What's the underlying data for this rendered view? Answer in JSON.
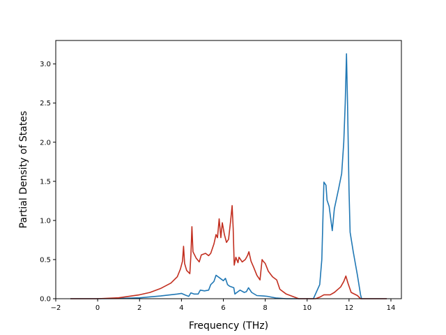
{
  "chart_data": {
    "type": "line",
    "title": "",
    "xlabel": "Frequency (THz)",
    "ylabel": "Partial Density of States",
    "xlim": [
      -2.0,
      14.5
    ],
    "ylim": [
      0.0,
      3.3
    ],
    "xticks": [
      -2,
      0,
      2,
      4,
      6,
      8,
      10,
      12,
      14
    ],
    "xtick_labels": [
      "−2",
      "0",
      "2",
      "4",
      "6",
      "8",
      "10",
      "12",
      "14"
    ],
    "yticks": [
      0.0,
      0.5,
      1.0,
      1.5,
      2.0,
      2.5,
      3.0
    ],
    "ytick_labels": [
      "0.0",
      "0.5",
      "1.0",
      "1.5",
      "2.0",
      "2.5",
      "3.0"
    ],
    "grid": false,
    "legend": "none",
    "series": [
      {
        "color": "#1f77b4",
        "points": [
          [
            -1.3,
            0.0
          ],
          [
            0.0,
            0.0
          ],
          [
            1.0,
            0.003
          ],
          [
            2.0,
            0.012
          ],
          [
            3.0,
            0.035
          ],
          [
            3.8,
            0.06
          ],
          [
            4.0,
            0.068
          ],
          [
            4.2,
            0.045
          ],
          [
            4.35,
            0.03
          ],
          [
            4.45,
            0.075
          ],
          [
            4.6,
            0.06
          ],
          [
            4.8,
            0.06
          ],
          [
            4.9,
            0.11
          ],
          [
            5.1,
            0.1
          ],
          [
            5.3,
            0.11
          ],
          [
            5.4,
            0.18
          ],
          [
            5.55,
            0.22
          ],
          [
            5.65,
            0.3
          ],
          [
            5.8,
            0.27
          ],
          [
            6.0,
            0.23
          ],
          [
            6.1,
            0.26
          ],
          [
            6.2,
            0.18
          ],
          [
            6.3,
            0.16
          ],
          [
            6.5,
            0.14
          ],
          [
            6.55,
            0.06
          ],
          [
            6.7,
            0.09
          ],
          [
            6.8,
            0.11
          ],
          [
            7.0,
            0.08
          ],
          [
            7.1,
            0.09
          ],
          [
            7.2,
            0.14
          ],
          [
            7.35,
            0.08
          ],
          [
            7.6,
            0.04
          ],
          [
            7.9,
            0.035
          ],
          [
            8.1,
            0.03
          ],
          [
            8.5,
            0.01
          ],
          [
            9.0,
            0.0
          ],
          [
            10.3,
            0.0
          ],
          [
            10.6,
            0.18
          ],
          [
            10.7,
            0.5
          ],
          [
            10.8,
            1.49
          ],
          [
            10.9,
            1.45
          ],
          [
            10.95,
            1.26
          ],
          [
            11.05,
            1.18
          ],
          [
            11.2,
            0.87
          ],
          [
            11.3,
            1.15
          ],
          [
            11.5,
            1.4
          ],
          [
            11.65,
            1.6
          ],
          [
            11.75,
            2.0
          ],
          [
            11.82,
            2.5
          ],
          [
            11.88,
            3.13
          ],
          [
            11.93,
            2.5
          ],
          [
            12.0,
            1.4
          ],
          [
            12.05,
            0.85
          ],
          [
            12.2,
            0.6
          ],
          [
            12.4,
            0.3
          ],
          [
            12.55,
            0.05
          ],
          [
            12.6,
            0.0
          ],
          [
            13.8,
            0.0
          ]
        ]
      },
      {
        "color": "#c22e1f",
        "points": [
          [
            -1.3,
            0.0
          ],
          [
            0.0,
            0.0
          ],
          [
            1.0,
            0.012
          ],
          [
            2.0,
            0.05
          ],
          [
            2.5,
            0.08
          ],
          [
            3.0,
            0.13
          ],
          [
            3.5,
            0.2
          ],
          [
            3.8,
            0.28
          ],
          [
            3.95,
            0.38
          ],
          [
            4.05,
            0.48
          ],
          [
            4.1,
            0.67
          ],
          [
            4.15,
            0.45
          ],
          [
            4.25,
            0.36
          ],
          [
            4.4,
            0.32
          ],
          [
            4.45,
            0.55
          ],
          [
            4.5,
            0.92
          ],
          [
            4.55,
            0.6
          ],
          [
            4.7,
            0.52
          ],
          [
            4.85,
            0.47
          ],
          [
            4.95,
            0.56
          ],
          [
            5.15,
            0.58
          ],
          [
            5.3,
            0.55
          ],
          [
            5.4,
            0.58
          ],
          [
            5.55,
            0.7
          ],
          [
            5.65,
            0.82
          ],
          [
            5.72,
            0.78
          ],
          [
            5.8,
            1.02
          ],
          [
            5.88,
            0.78
          ],
          [
            5.95,
            0.97
          ],
          [
            6.05,
            0.82
          ],
          [
            6.15,
            0.72
          ],
          [
            6.25,
            0.76
          ],
          [
            6.35,
            1.0
          ],
          [
            6.42,
            1.19
          ],
          [
            6.47,
            0.9
          ],
          [
            6.52,
            0.43
          ],
          [
            6.6,
            0.53
          ],
          [
            6.7,
            0.46
          ],
          [
            6.75,
            0.53
          ],
          [
            6.9,
            0.47
          ],
          [
            7.05,
            0.5
          ],
          [
            7.15,
            0.55
          ],
          [
            7.22,
            0.6
          ],
          [
            7.32,
            0.48
          ],
          [
            7.45,
            0.4
          ],
          [
            7.6,
            0.3
          ],
          [
            7.75,
            0.24
          ],
          [
            7.85,
            0.5
          ],
          [
            7.9,
            0.48
          ],
          [
            8.0,
            0.45
          ],
          [
            8.15,
            0.35
          ],
          [
            8.35,
            0.28
          ],
          [
            8.55,
            0.24
          ],
          [
            8.7,
            0.12
          ],
          [
            9.0,
            0.06
          ],
          [
            9.3,
            0.03
          ],
          [
            9.6,
            0.0
          ],
          [
            10.4,
            0.0
          ],
          [
            10.6,
            0.02
          ],
          [
            10.8,
            0.05
          ],
          [
            11.1,
            0.05
          ],
          [
            11.3,
            0.08
          ],
          [
            11.6,
            0.15
          ],
          [
            11.75,
            0.22
          ],
          [
            11.85,
            0.29
          ],
          [
            11.95,
            0.2
          ],
          [
            12.1,
            0.08
          ],
          [
            12.4,
            0.04
          ],
          [
            12.55,
            0.0
          ],
          [
            13.8,
            0.0
          ]
        ]
      }
    ]
  }
}
